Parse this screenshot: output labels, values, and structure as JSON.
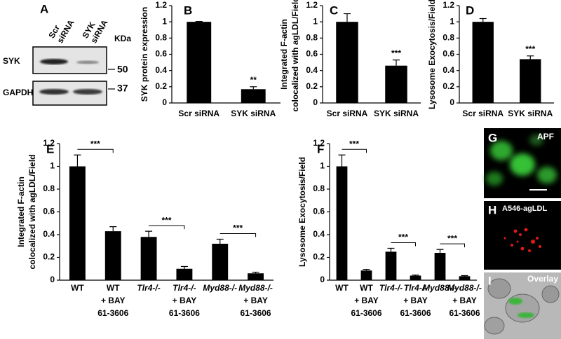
{
  "blot": {
    "panel": "A",
    "lanes": [
      [
        "Scr",
        "siRNA"
      ],
      [
        "SYK",
        "siRNA"
      ]
    ],
    "unit": "KDa",
    "proteins": [
      "SYK",
      "GAPDH"
    ],
    "markers": [
      "50",
      "37"
    ]
  },
  "images": [
    {
      "panel": "G",
      "label": "APF"
    },
    {
      "panel": "H",
      "label": "A546-agLDL"
    },
    {
      "panel": "I",
      "label": "Overlay"
    }
  ],
  "chart_data": [
    {
      "type": "bar",
      "panel": "B",
      "ylabel": [
        "SYK protein expression"
      ],
      "categories": [
        "Scr siRNA",
        "SYK siRNA"
      ],
      "series": [
        {
          "color": "#000000",
          "values": [
            1.0,
            0.17
          ],
          "errors": [
            0.005,
            0.03
          ]
        }
      ],
      "significance": [
        "**"
      ],
      "ylim": [
        0,
        1.2
      ],
      "yticks": [
        0,
        0.2,
        0.4,
        0.6,
        0.8,
        1,
        1.2
      ]
    },
    {
      "type": "bar",
      "panel": "C",
      "ylabel": [
        "Integrated F-actin",
        "colocalized with agLDL/Field"
      ],
      "categories": [
        "Scr siRNA",
        "SYK siRNA"
      ],
      "series": [
        {
          "color": "#000000",
          "values": [
            1.0,
            0.46
          ],
          "errors": [
            0.1,
            0.07
          ]
        }
      ],
      "significance": [
        "***"
      ],
      "ylim": [
        0,
        1.2
      ],
      "yticks": [
        0,
        0.2,
        0.4,
        0.6,
        0.8,
        1,
        1.2
      ]
    },
    {
      "type": "bar",
      "panel": "D",
      "ylabel": [
        "Lysosome Exocytosis/Field"
      ],
      "categories": [
        "Scr siRNA",
        "SYK siRNA"
      ],
      "series": [
        {
          "color": "#000000",
          "values": [
            1.0,
            0.54
          ],
          "errors": [
            0.04,
            0.04
          ]
        }
      ],
      "significance": [
        "***"
      ],
      "ylim": [
        0,
        1.2
      ],
      "yticks": [
        0,
        0.2,
        0.4,
        0.6,
        0.8,
        1,
        1.2
      ]
    },
    {
      "type": "bar",
      "panel": "E",
      "ylabel": [
        "Integrated F-actin",
        "colocalized with agLDL/Field"
      ],
      "categories": [
        [
          "WT"
        ],
        [
          "WT",
          "+ BAY",
          "61-3606"
        ],
        [
          "Tlr4-/-"
        ],
        [
          "Tlr4-/-",
          "+ BAY",
          "61-3606"
        ],
        [
          "Myd88-/-"
        ],
        [
          "Myd88-/-",
          "+ BAY",
          "61-3606"
        ]
      ],
      "series": [
        {
          "color": "#000000",
          "values": [
            1.0,
            0.43,
            0.38,
            0.1,
            0.32,
            0.06
          ],
          "errors": [
            0.1,
            0.04,
            0.05,
            0.02,
            0.04,
            0.01
          ]
        }
      ],
      "significance": [
        "***",
        "***",
        "***"
      ],
      "ylim": [
        0,
        1.2
      ],
      "yticks": [
        0,
        0.2,
        0.4,
        0.6,
        0.8,
        1,
        1.2
      ]
    },
    {
      "type": "bar",
      "panel": "F",
      "ylabel": [
        "Lysosome Exocytosis/Field"
      ],
      "categories": [
        [
          "WT"
        ],
        [
          "WT",
          "+ BAY",
          "61-3606"
        ],
        [
          "Tlr4-/-"
        ],
        [
          "Tlr4-/-",
          "+ BAY",
          "61-3606"
        ],
        [
          "Myd88-/-"
        ],
        [
          "Myd88-/-",
          "+ BAY",
          "61-3606"
        ]
      ],
      "series": [
        {
          "color": "#000000",
          "values": [
            1.0,
            0.085,
            0.25,
            0.04,
            0.24,
            0.035
          ],
          "errors": [
            0.1,
            0.01,
            0.03,
            0.005,
            0.03,
            0.005
          ]
        }
      ],
      "significance": [
        "***",
        "***",
        "***"
      ],
      "ylim": [
        0,
        1.2
      ],
      "yticks": [
        0,
        0.2,
        0.4,
        0.6,
        0.8,
        1,
        1.2
      ]
    }
  ]
}
